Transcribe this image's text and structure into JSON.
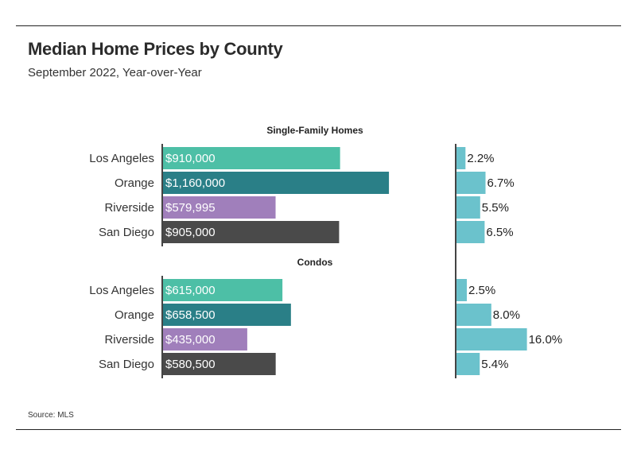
{
  "header": {
    "title": "Median Home Prices by County",
    "subtitle": "September 2022, Year-over-Year"
  },
  "source": "Source:  MLS",
  "chart_data": {
    "type": "bar",
    "orientation": "horizontal",
    "categories": [
      "Los Angeles",
      "Orange",
      "Riverside",
      "San Diego"
    ],
    "category_colors": [
      "#4dbfa6",
      "#2a7f87",
      "#a07fbb",
      "#4a4a4a"
    ],
    "pct_color": "#6bc2cc",
    "groups": [
      {
        "title": "Single-Family Homes",
        "prices": [
          910000,
          1160000,
          579995,
          905000
        ],
        "price_labels": [
          "$910,000",
          "$1,160,000",
          "$579,995",
          "$905,000"
        ],
        "yoy_pct": [
          2.2,
          6.7,
          5.5,
          6.5
        ],
        "yoy_labels": [
          "2.2%",
          "6.7%",
          "5.5%",
          "6.5%"
        ]
      },
      {
        "title": "Condos",
        "prices": [
          615000,
          658500,
          435000,
          580500
        ],
        "price_labels": [
          "$615,000",
          "$658,500",
          "$435,000",
          "$580,500"
        ],
        "yoy_pct": [
          2.5,
          8.0,
          16.0,
          5.4
        ],
        "yoy_labels": [
          "2.5%",
          "8.0%",
          "16.0%",
          "5.4%"
        ]
      }
    ],
    "price_axis_max": 1180000,
    "pct_axis_max": 17.5,
    "grid": false,
    "legend": "none"
  }
}
